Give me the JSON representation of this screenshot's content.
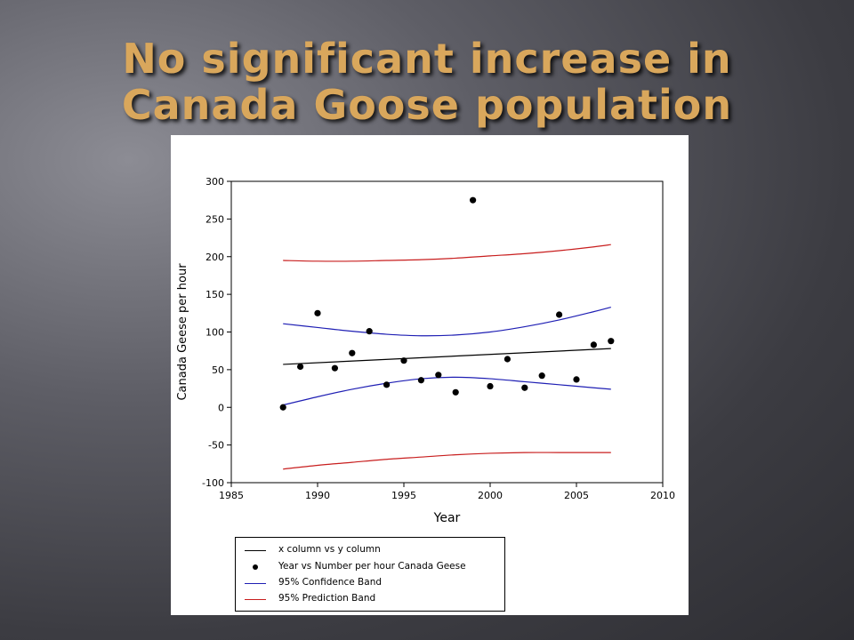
{
  "slide": {
    "title_line1": "No significant increase in",
    "title_line2": "Canada Goose population"
  },
  "chart_data": {
    "type": "scatter",
    "xlabel": "Year",
    "ylabel": "Canada Geese per hour",
    "xlim": [
      1985,
      2010
    ],
    "ylim": [
      -100,
      300
    ],
    "xticks": [
      1985,
      1990,
      1995,
      2000,
      2005,
      2010
    ],
    "yticks": [
      -100,
      -50,
      0,
      50,
      100,
      150,
      200,
      250,
      300
    ],
    "grid": false,
    "legend_position": "bottom-left",
    "series": [
      {
        "name": "x column vs y column",
        "kind": "line",
        "color": "#000000",
        "x": [
          1988,
          2007
        ],
        "y": [
          57,
          78
        ]
      },
      {
        "name": "Year vs Number per hour Canada Geese",
        "kind": "scatter",
        "color": "#000000",
        "x": [
          1988,
          1989,
          1990,
          1991,
          1992,
          1993,
          1994,
          1995,
          1996,
          1997,
          1998,
          1999,
          2000,
          2001,
          2002,
          2003,
          2004,
          2005,
          2006,
          2007
        ],
        "y": [
          0,
          54,
          125,
          52,
          72,
          101,
          30,
          62,
          36,
          43,
          20,
          275,
          28,
          64,
          26,
          42,
          123,
          37,
          83,
          88
        ]
      },
      {
        "name": "95% Confidence Band",
        "kind": "band",
        "color": "#1f1fb4",
        "x": [
          1988,
          1990,
          1992,
          1994,
          1996,
          1998,
          2000,
          2002,
          2004,
          2006,
          2007
        ],
        "upper": [
          111,
          106,
          101,
          97,
          95,
          96,
          100,
          107,
          116,
          127,
          133
        ],
        "lower": [
          3,
          14,
          24,
          32,
          38,
          40,
          38,
          34,
          30,
          26,
          24
        ]
      },
      {
        "name": "95% Prediction Band",
        "kind": "band",
        "color": "#c81e1e",
        "x": [
          1988,
          1990,
          1992,
          1994,
          1996,
          1998,
          2000,
          2002,
          2004,
          2006,
          2007
        ],
        "upper": [
          195,
          194,
          194,
          195,
          196,
          198,
          201,
          204,
          208,
          213,
          216
        ],
        "lower": [
          -82,
          -77,
          -73,
          -69,
          -66,
          -63,
          -61,
          -60,
          -60,
          -60,
          -60
        ]
      }
    ]
  }
}
